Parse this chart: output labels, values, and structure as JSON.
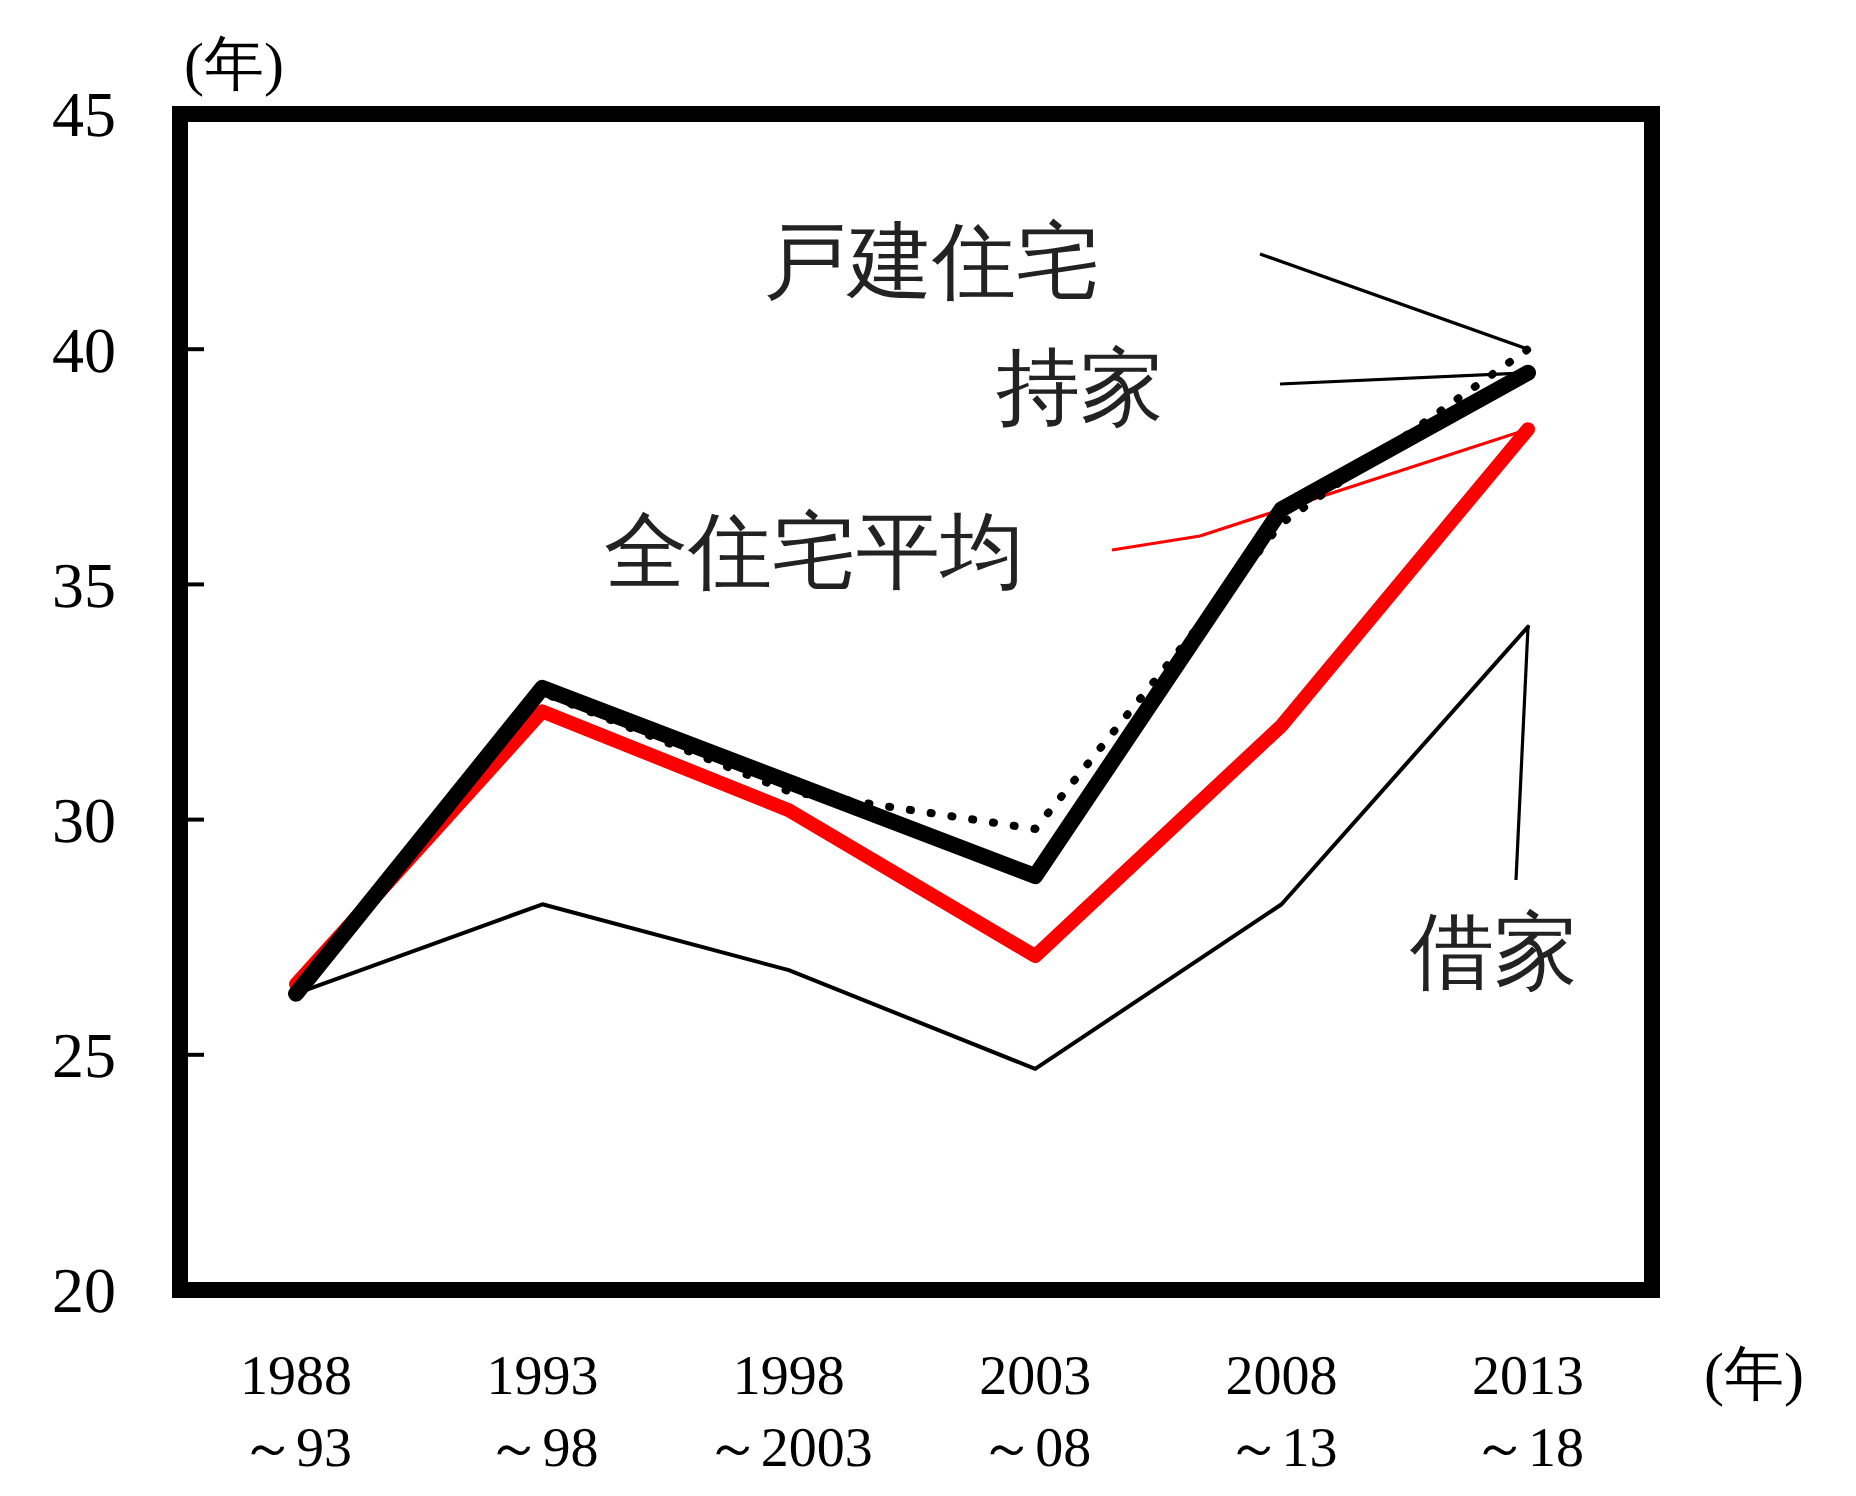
{
  "chart_data": {
    "type": "line",
    "ylabel": "(年)",
    "xlabel": "(年)",
    "categories": [
      "1988\n～93",
      "1993\n～98",
      "1998\n～2003",
      "2003\n～08",
      "2008\n～13",
      "2013\n～18"
    ],
    "ylim": [
      20,
      45
    ],
    "yticks": [
      20,
      25,
      30,
      35,
      40,
      45
    ],
    "grid": false,
    "legend": "top right",
    "marker": "none",
    "series": [
      {
        "name": "戸建住宅",
        "color": "#000000",
        "line_style": "dotted",
        "values": [
          26.3,
          32.7,
          30.6,
          29.8,
          36.3,
          40.0
        ]
      },
      {
        "name": "持家",
        "color": "#000000",
        "line_style": "solid",
        "values": [
          26.3,
          32.8,
          30.8,
          28.8,
          36.6,
          39.5
        ]
      },
      {
        "name": "全住宅平均",
        "color": "#ff0000",
        "line_style": "solid",
        "values": [
          26.5,
          32.3,
          30.2,
          27.1,
          32.0,
          38.3
        ]
      },
      {
        "name": "借家",
        "color": "#000000",
        "line_style": "solid",
        "values": [
          26.3,
          28.2,
          26.8,
          24.7,
          28.2,
          34.1
        ]
      }
    ]
  }
}
